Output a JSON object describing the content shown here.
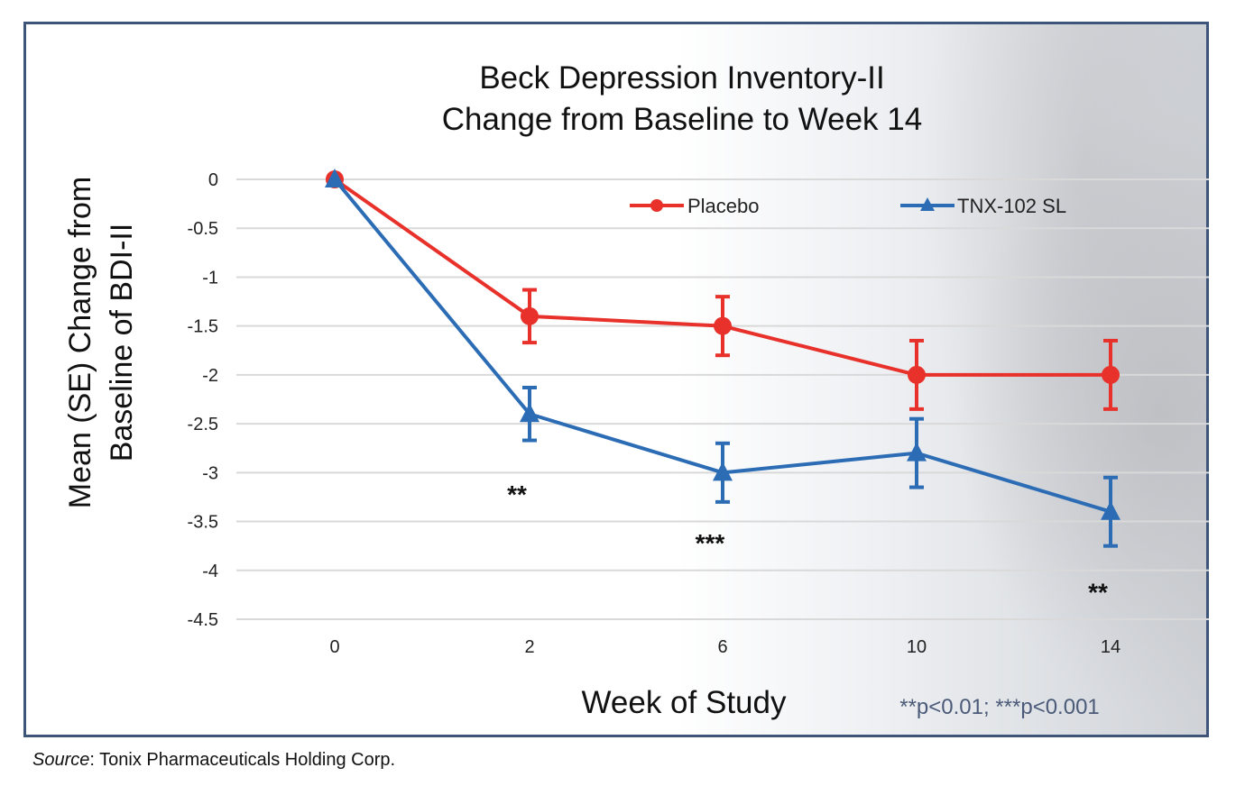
{
  "chart_data": {
    "type": "line",
    "title": [
      "Beck Depression Inventory-II",
      "Change from Baseline to Week 14"
    ],
    "xlabel": "Week of Study",
    "ylabel": [
      "Mean (SE) Change from",
      "Baseline of BDI-II"
    ],
    "categories": [
      "0",
      "2",
      "6",
      "10",
      "14"
    ],
    "yticks": [
      "0",
      "-0.5",
      "-1",
      "-1.5",
      "-2",
      "-2.5",
      "-3",
      "-3.5",
      "-4",
      "-4.5"
    ],
    "ylim": [
      -4.5,
      0
    ],
    "grid": true,
    "legend_position": "top-right",
    "series": [
      {
        "name": "Placebo",
        "color": "#e8312a",
        "marker": "circle",
        "values": [
          0,
          -1.4,
          -1.5,
          -2.0,
          -2.0
        ],
        "errors": [
          0,
          0.27,
          0.3,
          0.35,
          0.35
        ]
      },
      {
        "name": "TNX-102 SL",
        "color": "#2b6cb5",
        "marker": "triangle",
        "values": [
          0,
          -2.4,
          -3.0,
          -2.8,
          -3.4
        ],
        "errors": [
          0,
          0.27,
          0.3,
          0.35,
          0.35
        ]
      }
    ],
    "annotations": [
      {
        "category": "2",
        "text": "**",
        "y": -3.2
      },
      {
        "category": "6",
        "text": "***",
        "y": -3.7
      },
      {
        "category": "14",
        "text": "**",
        "y": -4.2
      }
    ],
    "footnote": "**p<0.01; ***p<0.001"
  },
  "source": {
    "label": "Source",
    "text": ": Tonix Pharmaceuticals Holding Corp."
  }
}
